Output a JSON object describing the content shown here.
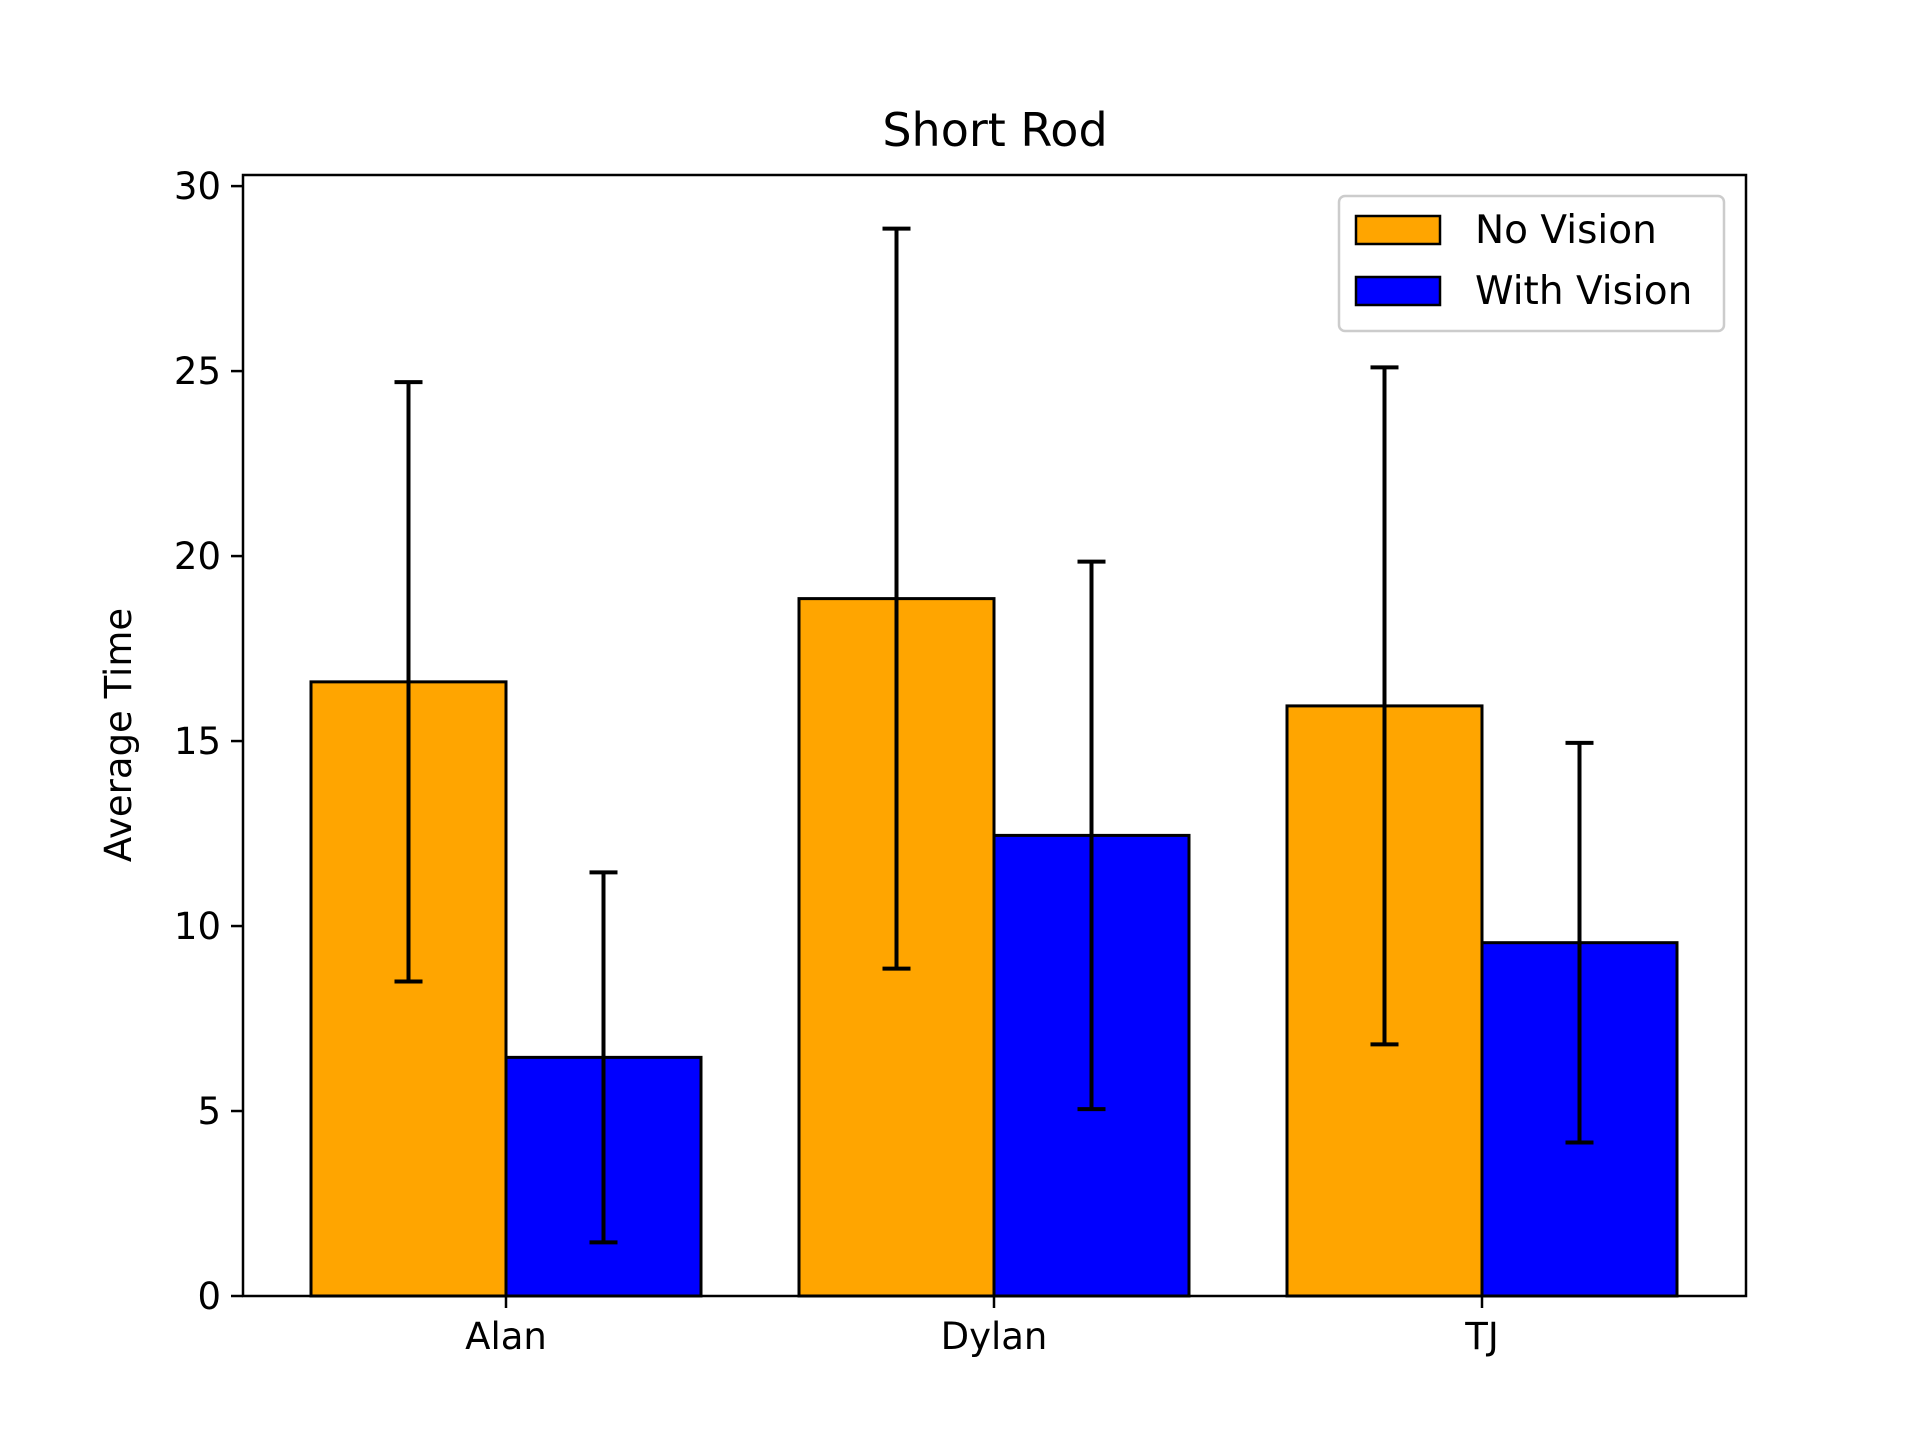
{
  "chart_data": {
    "type": "bar",
    "title": "Short Rod",
    "xlabel": "",
    "ylabel": "Average Time",
    "categories": [
      "Alan",
      "Dylan",
      "TJ"
    ],
    "ylim": [
      0,
      30.3
    ],
    "yticks": [
      0,
      5,
      10,
      15,
      20,
      25,
      30
    ],
    "grid": false,
    "legend_position": "top-right",
    "series": [
      {
        "name": "No Vision",
        "color": "#FFA500",
        "values": [
          16.6,
          18.85,
          15.95
        ],
        "errors": [
          8.1,
          10.0,
          9.15
        ]
      },
      {
        "name": "With Vision",
        "color": "#0000FF",
        "values": [
          6.45,
          12.45,
          9.55
        ],
        "errors": [
          5.0,
          7.4,
          5.4
        ]
      }
    ]
  }
}
